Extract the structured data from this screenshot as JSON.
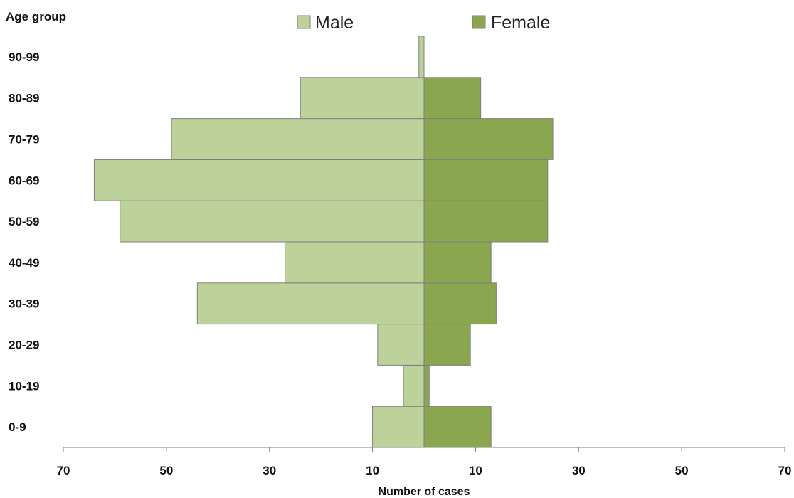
{
  "chart_data": {
    "type": "bar",
    "orientation": "horizontal-population-pyramid",
    "title": "",
    "ylabel": "Age group",
    "xlabel": "Number of cases",
    "xlim": [
      -70,
      70
    ],
    "x_ticks": [
      -70,
      -50,
      -30,
      -10,
      10,
      30,
      50,
      70
    ],
    "x_tick_labels": [
      "70",
      "50",
      "30",
      "10",
      "10",
      "30",
      "50",
      "70"
    ],
    "categories": [
      "0-9",
      "10-19",
      "20-29",
      "30-39",
      "40-49",
      "50-59",
      "60-69",
      "70-79",
      "80-89",
      "90-99"
    ],
    "series": [
      {
        "name": "Male",
        "side": "left",
        "color": "#bdd19a",
        "values": [
          10,
          4,
          9,
          44,
          27,
          59,
          64,
          49,
          24,
          1
        ]
      },
      {
        "name": "Female",
        "side": "right",
        "color": "#8aa64f",
        "values": [
          13,
          1,
          9,
          14,
          13,
          24,
          24,
          25,
          11,
          0
        ]
      }
    ],
    "legend_position": "top-center",
    "grid": false
  }
}
